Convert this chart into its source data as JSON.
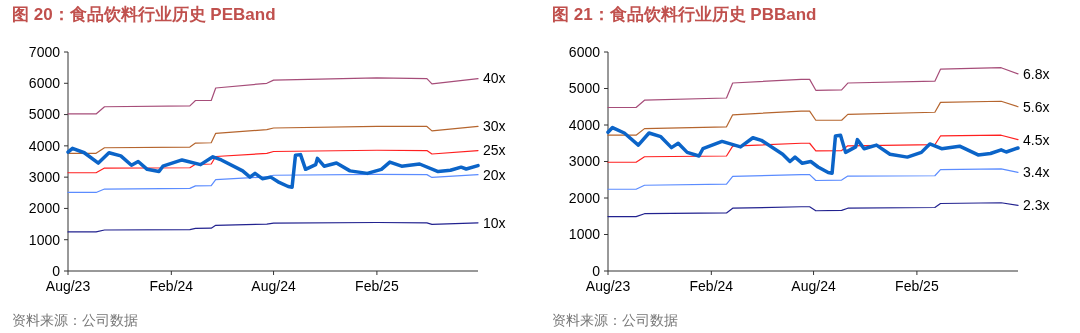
{
  "chart_data": [
    {
      "type": "line",
      "title": "图 20：食品饮料行业历史 PEBand",
      "annotations": [
        "资料来源：公司数据"
      ],
      "grid": false,
      "xlim": [
        "2023-08-01",
        "2025-07-31"
      ],
      "xticks": [
        {
          "value": "2023-08-01",
          "label": "Aug/23"
        },
        {
          "value": "2024-02-01",
          "label": "Feb/24"
        },
        {
          "value": "2024-08-01",
          "label": "Aug/24"
        },
        {
          "value": "2025-02-01",
          "label": "Feb/25"
        }
      ],
      "ylim": [
        0,
        7000
      ],
      "yticks": [
        0,
        1000,
        2000,
        3000,
        4000,
        5000,
        6000,
        7000
      ],
      "x": [
        "2023-08-01",
        "2023-09-20",
        "2023-10-05",
        "2024-03-05",
        "2024-03-15",
        "2024-04-12",
        "2024-04-20",
        "2024-07-20",
        "2024-08-01",
        "2025-02-01",
        "2025-05-01",
        "2025-05-10",
        "2025-07-31"
      ],
      "series": [
        {
          "name": "40x",
          "color": "#a64d79",
          "values": [
            5020,
            5020,
            5250,
            5280,
            5450,
            5450,
            5850,
            6000,
            6100,
            6170,
            6150,
            5980,
            6150
          ]
        },
        {
          "name": "30x",
          "color": "#b5652e",
          "values": [
            3760,
            3760,
            3940,
            3960,
            4090,
            4100,
            4400,
            4520,
            4570,
            4620,
            4620,
            4480,
            4620
          ]
        },
        {
          "name": "25x",
          "color": "#ff2020",
          "values": [
            3140,
            3140,
            3290,
            3300,
            3410,
            3420,
            3660,
            3760,
            3820,
            3860,
            3850,
            3740,
            3850
          ]
        },
        {
          "name": "20x",
          "color": "#5b8cff",
          "values": [
            2510,
            2510,
            2620,
            2640,
            2720,
            2730,
            2920,
            3010,
            3060,
            3090,
            3080,
            2990,
            3080
          ]
        },
        {
          "name": "10x",
          "color": "#22228f",
          "values": [
            1250,
            1250,
            1310,
            1320,
            1360,
            1370,
            1460,
            1500,
            1530,
            1550,
            1540,
            1490,
            1540
          ]
        },
        {
          "color": "#0b64c8",
          "x": [
            "2023-08-01",
            "2023-08-09",
            "2023-08-30",
            "2023-09-24",
            "2023-10-13",
            "2023-11-03",
            "2023-11-22",
            "2023-12-04",
            "2023-12-20",
            "2024-01-10",
            "2024-01-17",
            "2024-02-20",
            "2024-03-24",
            "2024-04-15",
            "2024-04-30",
            "2024-06-07",
            "2024-06-20",
            "2024-06-29",
            "2024-07-12",
            "2024-07-27",
            "2024-08-09",
            "2024-08-27",
            "2024-09-03",
            "2024-09-09",
            "2024-09-18",
            "2024-09-27",
            "2024-10-15",
            "2024-10-18",
            "2024-10-30",
            "2024-11-21",
            "2024-12-15",
            "2025-01-15",
            "2025-02-09",
            "2025-02-24",
            "2025-03-17",
            "2025-04-18",
            "2025-05-21",
            "2025-06-12",
            "2025-07-01",
            "2025-07-10",
            "2025-07-31"
          ],
          "values": [
            3800,
            3920,
            3780,
            3450,
            3780,
            3680,
            3380,
            3500,
            3250,
            3180,
            3350,
            3550,
            3400,
            3650,
            3550,
            3200,
            3000,
            3120,
            2950,
            3000,
            2850,
            2700,
            2680,
            3700,
            3720,
            3250,
            3400,
            3600,
            3350,
            3450,
            3200,
            3120,
            3250,
            3480,
            3350,
            3420,
            3180,
            3220,
            3320,
            3260,
            3370
          ]
        }
      ]
    },
    {
      "type": "line",
      "title": "图 21：食品饮料行业历史 PBBand",
      "annotations": [
        "资料来源：公司数据"
      ],
      "grid": false,
      "xlim": [
        "2023-08-01",
        "2025-07-31"
      ],
      "xticks": [
        {
          "value": "2023-08-01",
          "label": "Aug/23"
        },
        {
          "value": "2024-02-01",
          "label": "Feb/24"
        },
        {
          "value": "2024-08-01",
          "label": "Aug/24"
        },
        {
          "value": "2025-02-01",
          "label": "Feb/25"
        }
      ],
      "ylim": [
        0,
        6000
      ],
      "yticks": [
        0,
        1000,
        2000,
        3000,
        4000,
        5000,
        6000
      ],
      "x": [
        "2023-08-01",
        "2023-09-20",
        "2023-10-05",
        "2024-02-28",
        "2024-03-10",
        "2024-07-10",
        "2024-07-25",
        "2024-08-05",
        "2024-09-20",
        "2024-10-01",
        "2025-03-05",
        "2025-03-15",
        "2025-07-01",
        "2025-07-31"
      ],
      "series": [
        {
          "name": "6.8x",
          "color": "#a64d79",
          "values": [
            4480,
            4480,
            4680,
            4740,
            5150,
            5250,
            5250,
            4950,
            4960,
            5150,
            5200,
            5530,
            5570,
            5400
          ]
        },
        {
          "name": "5.6x",
          "color": "#b5652e",
          "values": [
            3720,
            3720,
            3900,
            3950,
            4280,
            4380,
            4380,
            4130,
            4130,
            4290,
            4350,
            4620,
            4650,
            4500
          ]
        },
        {
          "name": "4.5x",
          "color": "#ff2020",
          "values": [
            2980,
            2980,
            3130,
            3150,
            3420,
            3500,
            3500,
            3290,
            3300,
            3430,
            3460,
            3700,
            3720,
            3600
          ]
        },
        {
          "name": "3.4x",
          "color": "#5b8cff",
          "values": [
            2240,
            2240,
            2350,
            2380,
            2590,
            2640,
            2640,
            2480,
            2490,
            2600,
            2610,
            2780,
            2800,
            2700
          ]
        },
        {
          "name": "2.3x",
          "color": "#22228f",
          "values": [
            1490,
            1490,
            1570,
            1590,
            1720,
            1760,
            1760,
            1650,
            1660,
            1720,
            1740,
            1850,
            1870,
            1800
          ]
        },
        {
          "color": "#0b64c8",
          "x": [
            "2023-08-01",
            "2023-08-09",
            "2023-08-30",
            "2023-09-24",
            "2023-10-13",
            "2023-11-03",
            "2023-11-22",
            "2023-12-04",
            "2023-12-20",
            "2024-01-10",
            "2024-01-17",
            "2024-02-20",
            "2024-03-24",
            "2024-04-15",
            "2024-04-30",
            "2024-06-07",
            "2024-06-20",
            "2024-06-29",
            "2024-07-12",
            "2024-07-27",
            "2024-08-09",
            "2024-08-27",
            "2024-09-03",
            "2024-09-09",
            "2024-09-18",
            "2024-09-27",
            "2024-10-15",
            "2024-10-18",
            "2024-10-30",
            "2024-11-21",
            "2024-12-15",
            "2025-01-15",
            "2025-02-09",
            "2025-02-24",
            "2025-03-17",
            "2025-04-18",
            "2025-05-21",
            "2025-06-12",
            "2025-07-01",
            "2025-07-10",
            "2025-07-31"
          ],
          "values": [
            3800,
            3930,
            3780,
            3450,
            3780,
            3680,
            3380,
            3500,
            3250,
            3150,
            3350,
            3550,
            3400,
            3650,
            3580,
            3200,
            3000,
            3120,
            2950,
            3000,
            2850,
            2700,
            2680,
            3700,
            3720,
            3250,
            3400,
            3600,
            3350,
            3450,
            3200,
            3120,
            3250,
            3480,
            3350,
            3420,
            3180,
            3220,
            3320,
            3260,
            3370
          ]
        }
      ]
    }
  ]
}
